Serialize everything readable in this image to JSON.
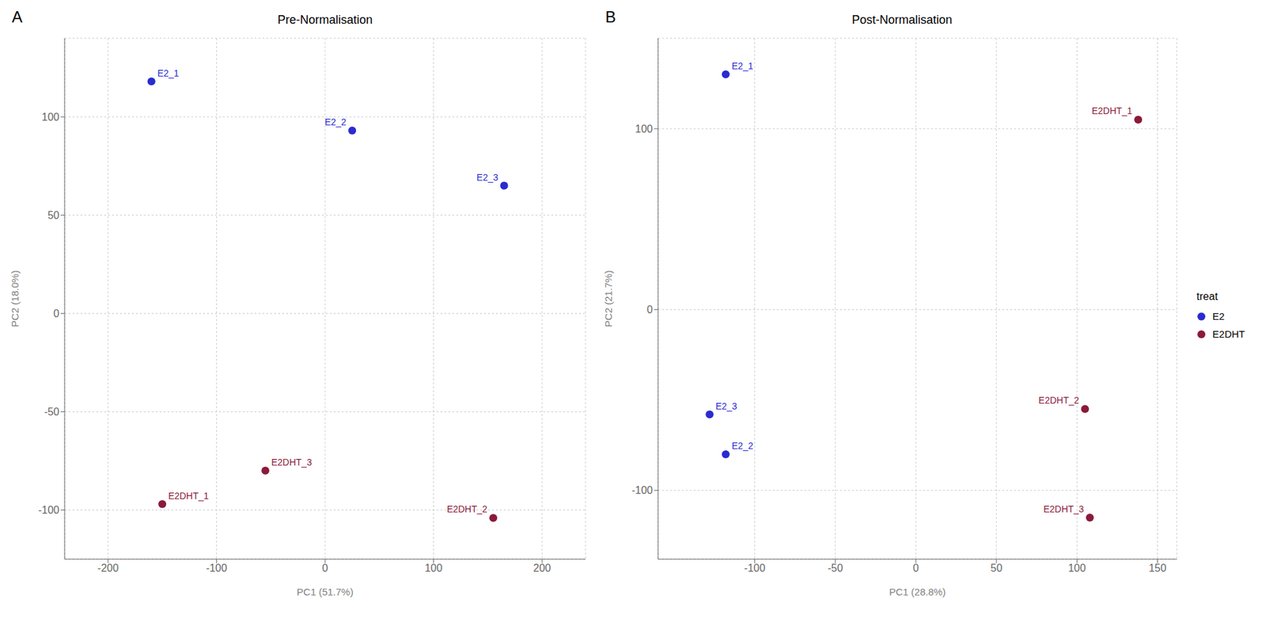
{
  "chart_data": [
    {
      "type": "scatter",
      "panel_label": "A",
      "title": "Pre-Normalisation",
      "xlabel": "PC1 (51.7%)",
      "ylabel": "PC2 (18.0%)",
      "xlim": [
        -240,
        240
      ],
      "ylim": [
        -125,
        140
      ],
      "xticks": [
        -200,
        -100,
        0,
        100,
        200
      ],
      "yticks": [
        -100,
        -50,
        0,
        50,
        100
      ],
      "grid": true,
      "series": [
        {
          "name": "E2",
          "color": "#2b2bcf",
          "x": [
            -160,
            25,
            165
          ],
          "values": [
            118,
            93,
            65
          ],
          "labels": [
            "E2_1",
            "E2_2",
            "E2_3"
          ]
        },
        {
          "name": "E2DHT",
          "color": "#8b1a3a",
          "x": [
            -150,
            155,
            -55
          ],
          "values": [
            -97,
            -104,
            -80
          ],
          "labels": [
            "E2DHT_1",
            "E2DHT_2",
            "E2DHT_3"
          ]
        }
      ]
    },
    {
      "type": "scatter",
      "panel_label": "B",
      "title": "Post-Normalisation",
      "xlabel": "PC1 (28.8%)",
      "ylabel": "PC2 (21.7%)",
      "xlim": [
        -160,
        162
      ],
      "ylim": [
        -138,
        150
      ],
      "xticks": [
        -100,
        -50,
        0,
        50,
        100,
        150
      ],
      "yticks": [
        -100,
        0,
        100
      ],
      "grid": true,
      "legend": "right",
      "legend_title": "treat",
      "series": [
        {
          "name": "E2",
          "color": "#2b2bcf",
          "x": [
            -118,
            -118,
            -128
          ],
          "values": [
            130,
            -80,
            -58
          ],
          "labels": [
            "E2_1",
            "E2_2",
            "E2_3"
          ]
        },
        {
          "name": "E2DHT",
          "color": "#8b1a3a",
          "x": [
            138,
            105,
            108
          ],
          "values": [
            105,
            -55,
            -115
          ],
          "labels": [
            "E2DHT_1",
            "E2DHT_2",
            "E2DHT_3"
          ]
        }
      ]
    }
  ]
}
